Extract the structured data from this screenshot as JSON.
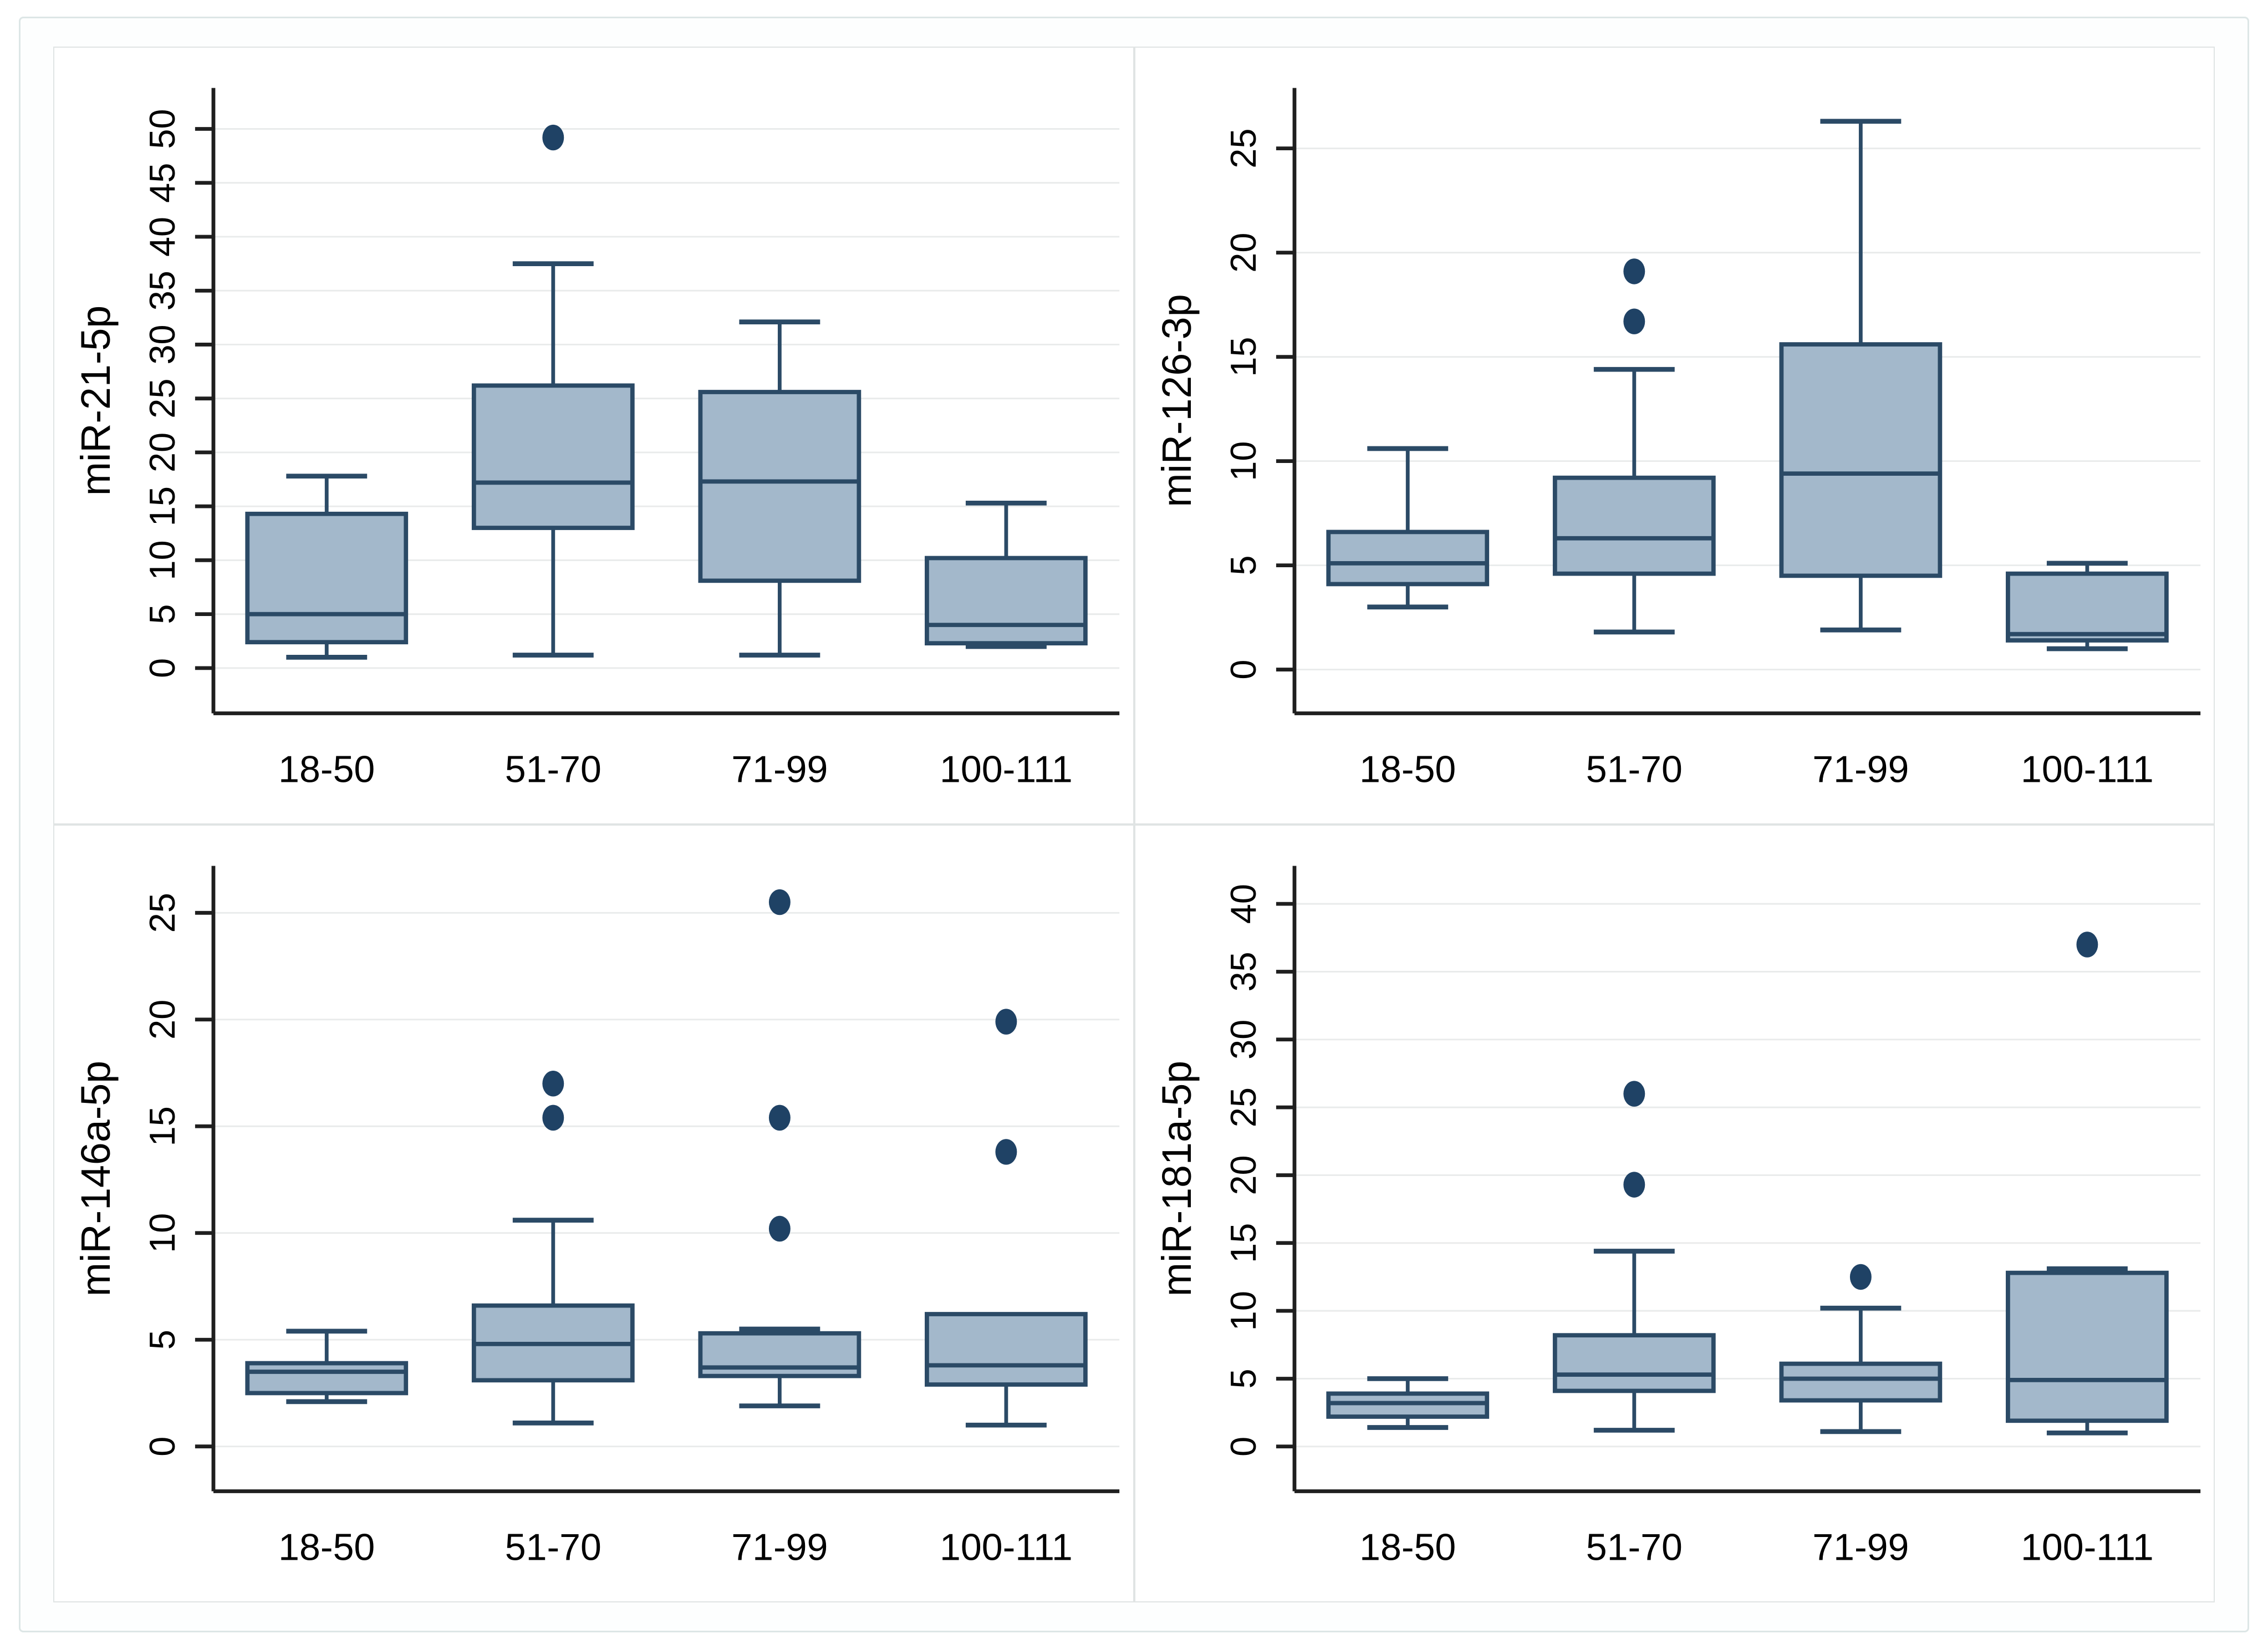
{
  "figure": {
    "kind": "boxplot-grid",
    "rows": 2,
    "cols": 2,
    "x_categories": [
      "18-50",
      "51-70",
      "71-99",
      "100-111"
    ]
  },
  "style": {
    "box_fill": "#a3b8cb",
    "box_stroke": "#2b4a66",
    "outlier_fill": "#1f4265",
    "grid_color": "#e9ebeb",
    "axis_color": "#1f1f1f",
    "text_color": "#000000",
    "panel_border": "#e0e4e4",
    "frame_border": "#dde6e6",
    "background": "#fdfefe"
  },
  "chart_data": [
    {
      "type": "box",
      "ylabel": "miR-21-5p",
      "categories": [
        "18-50",
        "51-70",
        "71-99",
        "100-111"
      ],
      "yticks": [
        0,
        5,
        10,
        15,
        20,
        25,
        30,
        35,
        40,
        45,
        50
      ],
      "ylim": [
        -4.2,
        53.8
      ],
      "grid": true,
      "legend": "none",
      "boxes": [
        {
          "category": "18-50",
          "whisker_low": 1.0,
          "q1": 2.4,
          "median": 5.0,
          "q3": 14.3,
          "whisker_high": 17.8,
          "outliers": []
        },
        {
          "category": "51-70",
          "whisker_low": 1.2,
          "q1": 13.0,
          "median": 17.2,
          "q3": 26.2,
          "whisker_high": 37.5,
          "outliers": [
            49.2
          ]
        },
        {
          "category": "71-99",
          "whisker_low": 1.2,
          "q1": 8.1,
          "median": 17.3,
          "q3": 25.6,
          "whisker_high": 32.1,
          "outliers": []
        },
        {
          "category": "100-111",
          "whisker_low": 2.0,
          "q1": 2.3,
          "median": 4.0,
          "q3": 10.2,
          "whisker_high": 15.3,
          "outliers": []
        }
      ]
    },
    {
      "type": "box",
      "ylabel": "miR-126-3p",
      "categories": [
        "18-50",
        "51-70",
        "71-99",
        "100-111"
      ],
      "yticks": [
        0,
        5,
        10,
        15,
        20,
        25
      ],
      "ylim": [
        -2.1,
        27.9
      ],
      "grid": true,
      "legend": "none",
      "boxes": [
        {
          "category": "18-50",
          "whisker_low": 3.0,
          "q1": 4.1,
          "median": 5.1,
          "q3": 6.6,
          "whisker_high": 10.6,
          "outliers": []
        },
        {
          "category": "51-70",
          "whisker_low": 1.8,
          "q1": 4.6,
          "median": 6.3,
          "q3": 9.2,
          "whisker_high": 14.4,
          "outliers": [
            16.7,
            19.1
          ]
        },
        {
          "category": "71-99",
          "whisker_low": 1.9,
          "q1": 4.5,
          "median": 9.4,
          "q3": 15.6,
          "whisker_high": 26.3,
          "outliers": []
        },
        {
          "category": "100-111",
          "whisker_low": 1.0,
          "q1": 1.4,
          "median": 1.7,
          "q3": 4.6,
          "whisker_high": 5.1,
          "outliers": []
        }
      ]
    },
    {
      "type": "box",
      "ylabel": "miR-146a-5p",
      "categories": [
        "18-50",
        "51-70",
        "71-99",
        "100-111"
      ],
      "yticks": [
        0,
        5,
        10,
        15,
        20,
        25
      ],
      "ylim": [
        -2.1,
        27.2
      ],
      "grid": true,
      "legend": "none",
      "boxes": [
        {
          "category": "18-50",
          "whisker_low": 2.1,
          "q1": 2.5,
          "median": 3.5,
          "q3": 3.9,
          "whisker_high": 5.4,
          "outliers": []
        },
        {
          "category": "51-70",
          "whisker_low": 1.1,
          "q1": 3.1,
          "median": 4.8,
          "q3": 6.6,
          "whisker_high": 10.6,
          "outliers": [
            15.4,
            17.0
          ]
        },
        {
          "category": "71-99",
          "whisker_low": 1.9,
          "q1": 3.3,
          "median": 3.7,
          "q3": 5.3,
          "whisker_high": 5.5,
          "outliers": [
            10.2,
            15.4,
            25.5
          ]
        },
        {
          "category": "100-111",
          "whisker_low": 1.0,
          "q1": 2.9,
          "median": 3.8,
          "q3": 6.2,
          "whisker_high": 6.2,
          "outliers": [
            13.8,
            19.9
          ]
        }
      ]
    },
    {
      "type": "box",
      "ylabel": "miR-181a-5p",
      "categories": [
        "18-50",
        "51-70",
        "71-99",
        "100-111"
      ],
      "yticks": [
        0,
        5,
        10,
        15,
        20,
        25,
        30,
        35,
        40
      ],
      "ylim": [
        -3.3,
        42.8
      ],
      "grid": true,
      "legend": "none",
      "boxes": [
        {
          "category": "18-50",
          "whisker_low": 1.4,
          "q1": 2.2,
          "median": 3.2,
          "q3": 3.9,
          "whisker_high": 5.0,
          "outliers": []
        },
        {
          "category": "51-70",
          "whisker_low": 1.2,
          "q1": 4.1,
          "median": 5.3,
          "q3": 8.2,
          "whisker_high": 14.4,
          "outliers": [
            19.3,
            26.0
          ]
        },
        {
          "category": "71-99",
          "whisker_low": 1.1,
          "q1": 3.4,
          "median": 5.0,
          "q3": 6.1,
          "whisker_high": 10.2,
          "outliers": [
            12.5
          ]
        },
        {
          "category": "100-111",
          "whisker_low": 1.0,
          "q1": 1.9,
          "median": 4.9,
          "q3": 12.8,
          "whisker_high": 13.1,
          "outliers": [
            37.0
          ]
        }
      ]
    }
  ]
}
